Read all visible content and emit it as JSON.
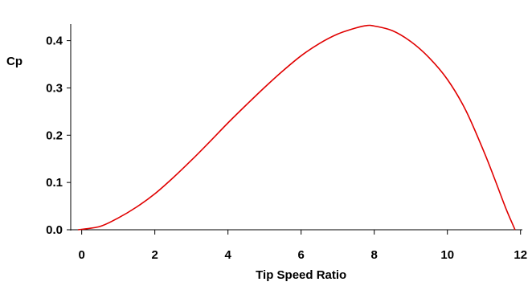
{
  "chart_data": {
    "type": "line",
    "title": "",
    "xlabel": "Tip Speed Ratio",
    "ylabel": "Cp",
    "xlim": [
      -0.3,
      12.05
    ],
    "ylim": [
      0,
      0.435
    ],
    "xticks": [
      0,
      2,
      4,
      6,
      8,
      10,
      12
    ],
    "xtick_labels": [
      "0",
      "2",
      "4",
      "6",
      "8",
      "10",
      "12"
    ],
    "yticks": [
      0.0,
      0.1,
      0.2,
      0.3,
      0.4
    ],
    "ytick_labels": [
      "0.0",
      "0.1",
      "0.2",
      "0.3",
      "0.4"
    ],
    "grid": false,
    "legend": "none",
    "series": [
      {
        "color": "#e00000",
        "x": [
          -0.1,
          0.5,
          1.0,
          1.5,
          2.0,
          2.5,
          3.0,
          3.5,
          4.0,
          4.5,
          5.0,
          5.5,
          6.0,
          6.5,
          7.0,
          7.5,
          7.8,
          8.0,
          8.5,
          9.0,
          9.5,
          10.0,
          10.5,
          11.0,
          11.3,
          11.6,
          11.85
        ],
        "y": [
          0.0,
          0.007,
          0.025,
          0.048,
          0.076,
          0.11,
          0.147,
          0.186,
          0.226,
          0.264,
          0.301,
          0.336,
          0.368,
          0.394,
          0.414,
          0.427,
          0.432,
          0.431,
          0.421,
          0.398,
          0.364,
          0.318,
          0.253,
          0.165,
          0.106,
          0.045,
          0.0
        ]
      }
    ]
  }
}
